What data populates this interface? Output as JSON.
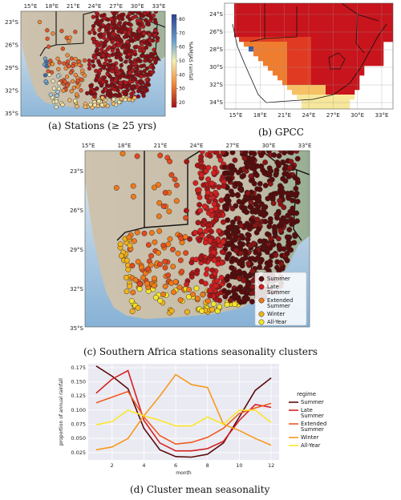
{
  "captions": {
    "a": "(a) Stations (≥ 25 yrs)",
    "b": "(b) GPCC",
    "c": "(c) Southern Africa stations seasonality clusters",
    "d": "(d) Cluster mean seasonality"
  },
  "panel_a": {
    "lon_ticks": [
      "15°E",
      "18°E",
      "21°E",
      "24°E",
      "27°E",
      "30°E",
      "33°E"
    ],
    "lat_ticks": [
      "23°S",
      "26°S",
      "29°S",
      "32°S",
      "35°S"
    ],
    "colorbar_label": "%AMJJAS rainfall",
    "colorbar_ticks": [
      "80",
      "70",
      "60",
      "50",
      "40",
      "30",
      "20"
    ]
  },
  "panel_b": {
    "lon_ticks": [
      "15°E",
      "18°E",
      "21°E",
      "24°E",
      "27°E",
      "30°E",
      "33°E"
    ],
    "lat_ticks": [
      "24°S",
      "26°S",
      "28°S",
      "30°S",
      "32°S",
      "34°S"
    ]
  },
  "panel_c": {
    "lon_ticks": [
      "15°E",
      "18°E",
      "21°E",
      "24°E",
      "27°E",
      "30°E",
      "33°E"
    ],
    "lat_ticks": [
      "23°S",
      "26°S",
      "29°S",
      "32°S",
      "35°S"
    ],
    "legend": [
      {
        "lines": [
          "Summer"
        ],
        "color": "#5a0b0b"
      },
      {
        "lines": [
          "Late",
          "Summer"
        ],
        "color": "#d42020"
      },
      {
        "lines": [
          "Extended",
          "Summer"
        ],
        "color": "#f07a1a"
      },
      {
        "lines": [
          "Winter"
        ],
        "color": "#f2b21c"
      },
      {
        "lines": [
          "All-Year"
        ],
        "color": "#f5e52a"
      }
    ]
  },
  "chart_data": {
    "type": "line",
    "title": "",
    "xlabel": "month",
    "ylabel": "proportion of annual rainfall",
    "x": [
      1,
      2,
      3,
      4,
      5,
      6,
      7,
      8,
      9,
      10,
      11,
      12
    ],
    "xticks": [
      2,
      4,
      6,
      8,
      10,
      12
    ],
    "yticks": [
      0.025,
      0.05,
      0.075,
      0.1,
      0.125,
      0.15,
      0.175
    ],
    "xlim": [
      0.5,
      12.5
    ],
    "ylim": [
      0.012,
      0.182
    ],
    "grid": true,
    "legend_title": "regime",
    "legend_position": "right",
    "series": [
      {
        "name": "Summer",
        "color": "#5a0b0b",
        "values": [
          0.178,
          0.16,
          0.138,
          0.068,
          0.03,
          0.018,
          0.017,
          0.022,
          0.042,
          0.088,
          0.135,
          0.157
        ]
      },
      {
        "name": "Late Summer",
        "color": "#d42020",
        "values": [
          0.13,
          0.155,
          0.17,
          0.082,
          0.042,
          0.028,
          0.028,
          0.032,
          0.045,
          0.082,
          0.11,
          0.105
        ]
      },
      {
        "name": "Extended Summer",
        "color": "#f05a22",
        "values": [
          0.113,
          0.123,
          0.133,
          0.088,
          0.055,
          0.04,
          0.043,
          0.052,
          0.068,
          0.094,
          0.104,
          0.112
        ]
      },
      {
        "name": "Winter",
        "color": "#f59a1e",
        "values": [
          0.03,
          0.035,
          0.05,
          0.09,
          0.125,
          0.163,
          0.145,
          0.14,
          0.075,
          0.064,
          0.05,
          0.038
        ]
      },
      {
        "name": "All-Year",
        "color": "#fbe62a",
        "values": [
          0.074,
          0.08,
          0.1,
          0.09,
          0.082,
          0.072,
          0.072,
          0.088,
          0.075,
          0.1,
          0.1,
          0.078
        ]
      }
    ]
  }
}
